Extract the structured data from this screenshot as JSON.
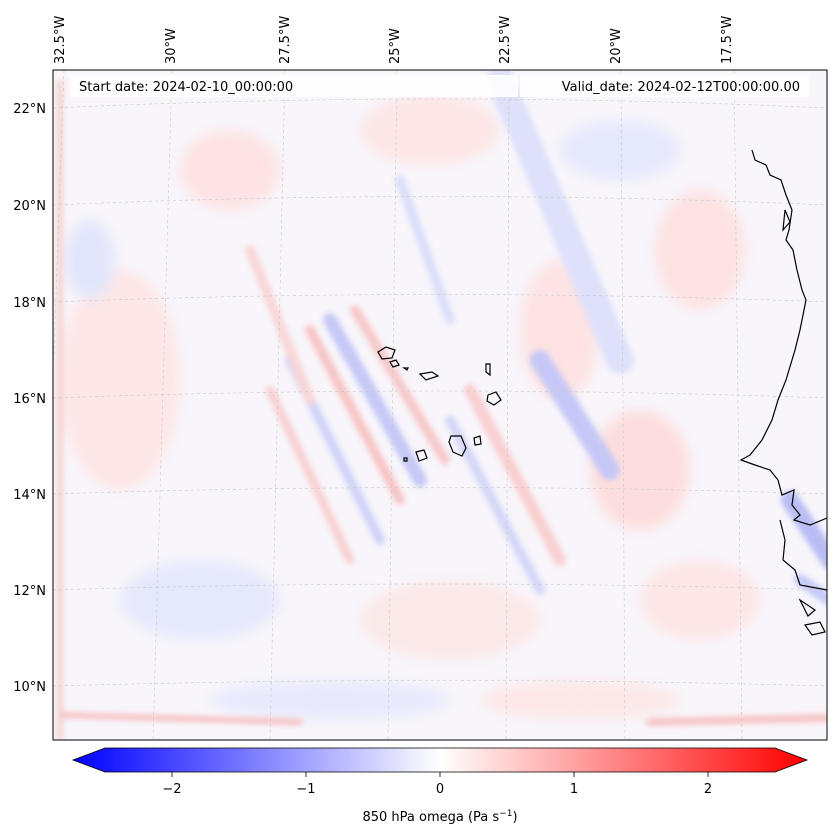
{
  "map": {
    "start_label": "Start date: 2024-02-10_00:00:00",
    "valid_label": "Valid_date: 2024-02-12T00:00:00.00",
    "lon_ticks": [
      "32.5°W",
      "30°W",
      "27.5°W",
      "25°W",
      "22.5°W",
      "20°W",
      "17.5°W"
    ],
    "lat_ticks": [
      "22°N",
      "20°N",
      "18°N",
      "16°N",
      "14°N",
      "12°N",
      "10°N"
    ],
    "region": "Cape Verde Islands and West African coast (Senegal / Gambia / Guinea-Bissau)"
  },
  "colorbar": {
    "label": "850 hPa omega (Pa s",
    "label_sup": "−1",
    "label_close": ")",
    "ticks": [
      "−2",
      "−1",
      "0",
      "1",
      "2"
    ],
    "range": [
      -2.7,
      2.7
    ],
    "colormap": "bwr",
    "color_min": "#0000ff",
    "color_mid": "#ffffff",
    "color_max": "#ff0000"
  }
}
